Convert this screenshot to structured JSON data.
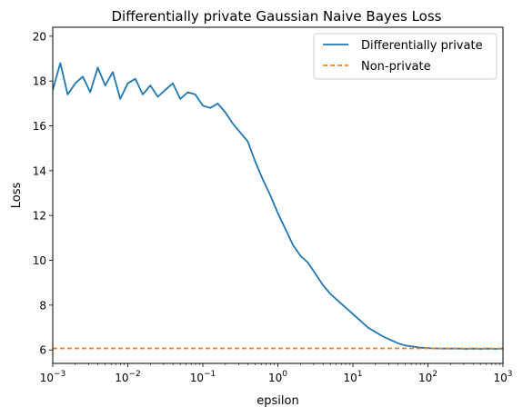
{
  "chart_data": {
    "type": "line",
    "title": "Differentially private Gaussian Naive Bayes Loss",
    "xlabel": "epsilon",
    "ylabel": "Loss",
    "xscale": "log",
    "xlim": [
      0.001,
      1000
    ],
    "ylim": [
      5.4,
      20.4
    ],
    "grid": false,
    "legend_position": "top-right",
    "x_ticks": [
      {
        "value": 0.001,
        "label": "10",
        "sup": "−3"
      },
      {
        "value": 0.01,
        "label": "10",
        "sup": "−2"
      },
      {
        "value": 0.1,
        "label": "10",
        "sup": "−1"
      },
      {
        "value": 1,
        "label": "10",
        "sup": "0"
      },
      {
        "value": 10,
        "label": "10",
        "sup": "1"
      },
      {
        "value": 100,
        "label": "10",
        "sup": "2"
      },
      {
        "value": 1000,
        "label": "10",
        "sup": "3"
      }
    ],
    "y_ticks": [
      {
        "value": 6,
        "label": "6"
      },
      {
        "value": 8,
        "label": "8"
      },
      {
        "value": 10,
        "label": "10"
      },
      {
        "value": 12,
        "label": "12"
      },
      {
        "value": 14,
        "label": "14"
      },
      {
        "value": 16,
        "label": "16"
      },
      {
        "value": 18,
        "label": "18"
      },
      {
        "value": 20,
        "label": "20"
      }
    ],
    "series": [
      {
        "name": "Differentially private",
        "color": "#1f77b4",
        "style": "solid",
        "x": [
          0.001,
          0.00126,
          0.00158,
          0.002,
          0.00251,
          0.00316,
          0.00398,
          0.00501,
          0.00631,
          0.00794,
          0.01,
          0.0126,
          0.0158,
          0.02,
          0.0251,
          0.0316,
          0.0398,
          0.0501,
          0.0631,
          0.0794,
          0.1,
          0.126,
          0.158,
          0.2,
          0.251,
          0.316,
          0.398,
          0.501,
          0.631,
          0.794,
          1,
          1.26,
          1.58,
          2,
          2.51,
          3.16,
          3.98,
          5.01,
          6.31,
          7.94,
          10,
          12.6,
          15.8,
          20,
          25.1,
          31.6,
          39.8,
          50.1,
          63.1,
          79.4,
          100,
          126,
          158,
          200,
          251,
          316,
          398,
          501,
          631,
          794,
          1000
        ],
        "y": [
          17.6,
          18.8,
          17.4,
          17.9,
          18.2,
          17.5,
          18.6,
          17.8,
          18.4,
          17.2,
          17.9,
          18.1,
          17.4,
          17.8,
          17.3,
          17.6,
          17.9,
          17.2,
          17.5,
          17.4,
          16.9,
          16.8,
          17.0,
          16.6,
          16.1,
          15.7,
          15.3,
          14.4,
          13.6,
          12.9,
          12.1,
          11.4,
          10.7,
          10.2,
          9.9,
          9.4,
          8.9,
          8.5,
          8.2,
          7.9,
          7.6,
          7.3,
          7.0,
          6.8,
          6.6,
          6.45,
          6.3,
          6.2,
          6.15,
          6.1,
          6.08,
          6.07,
          6.06,
          6.06,
          6.06,
          6.05,
          6.06,
          6.05,
          6.06,
          6.05,
          6.06
        ]
      },
      {
        "name": "Non-private",
        "color": "#ff7f0e",
        "style": "dashed",
        "x": [
          0.001,
          1000
        ],
        "y": [
          6.07,
          6.07
        ]
      }
    ]
  }
}
